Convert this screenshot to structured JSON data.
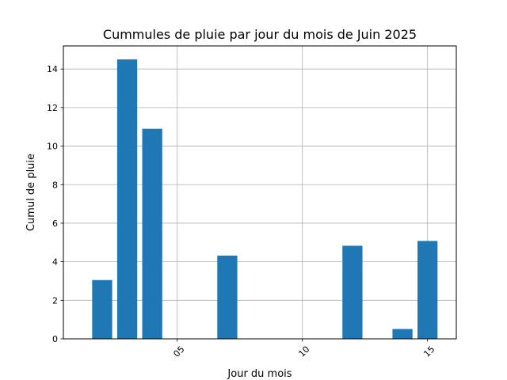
{
  "chart_data": {
    "type": "bar",
    "title": "Cummules de pluie par jour du mois de Juin 2025",
    "xlabel": "Jour du mois",
    "ylabel": "Cumul de pluie",
    "x": [
      2,
      3,
      4,
      7,
      12,
      14,
      15
    ],
    "values": [
      3.05,
      14.5,
      10.9,
      4.32,
      4.83,
      0.51,
      5.08
    ],
    "xlim": [
      0.45,
      16.15
    ],
    "ylim": [
      0,
      15.2
    ],
    "xticks": [
      5,
      10,
      15
    ],
    "xtick_labels": [
      "05",
      "10",
      "15"
    ],
    "xtick_rotation": 45,
    "yticks": [
      0,
      2,
      4,
      6,
      8,
      10,
      12,
      14
    ],
    "ytick_labels": [
      "0",
      "2",
      "4",
      "6",
      "8",
      "10",
      "12",
      "14"
    ],
    "grid": true,
    "bar_color": "#1f77b4",
    "grid_color": "#b0b0b0"
  }
}
